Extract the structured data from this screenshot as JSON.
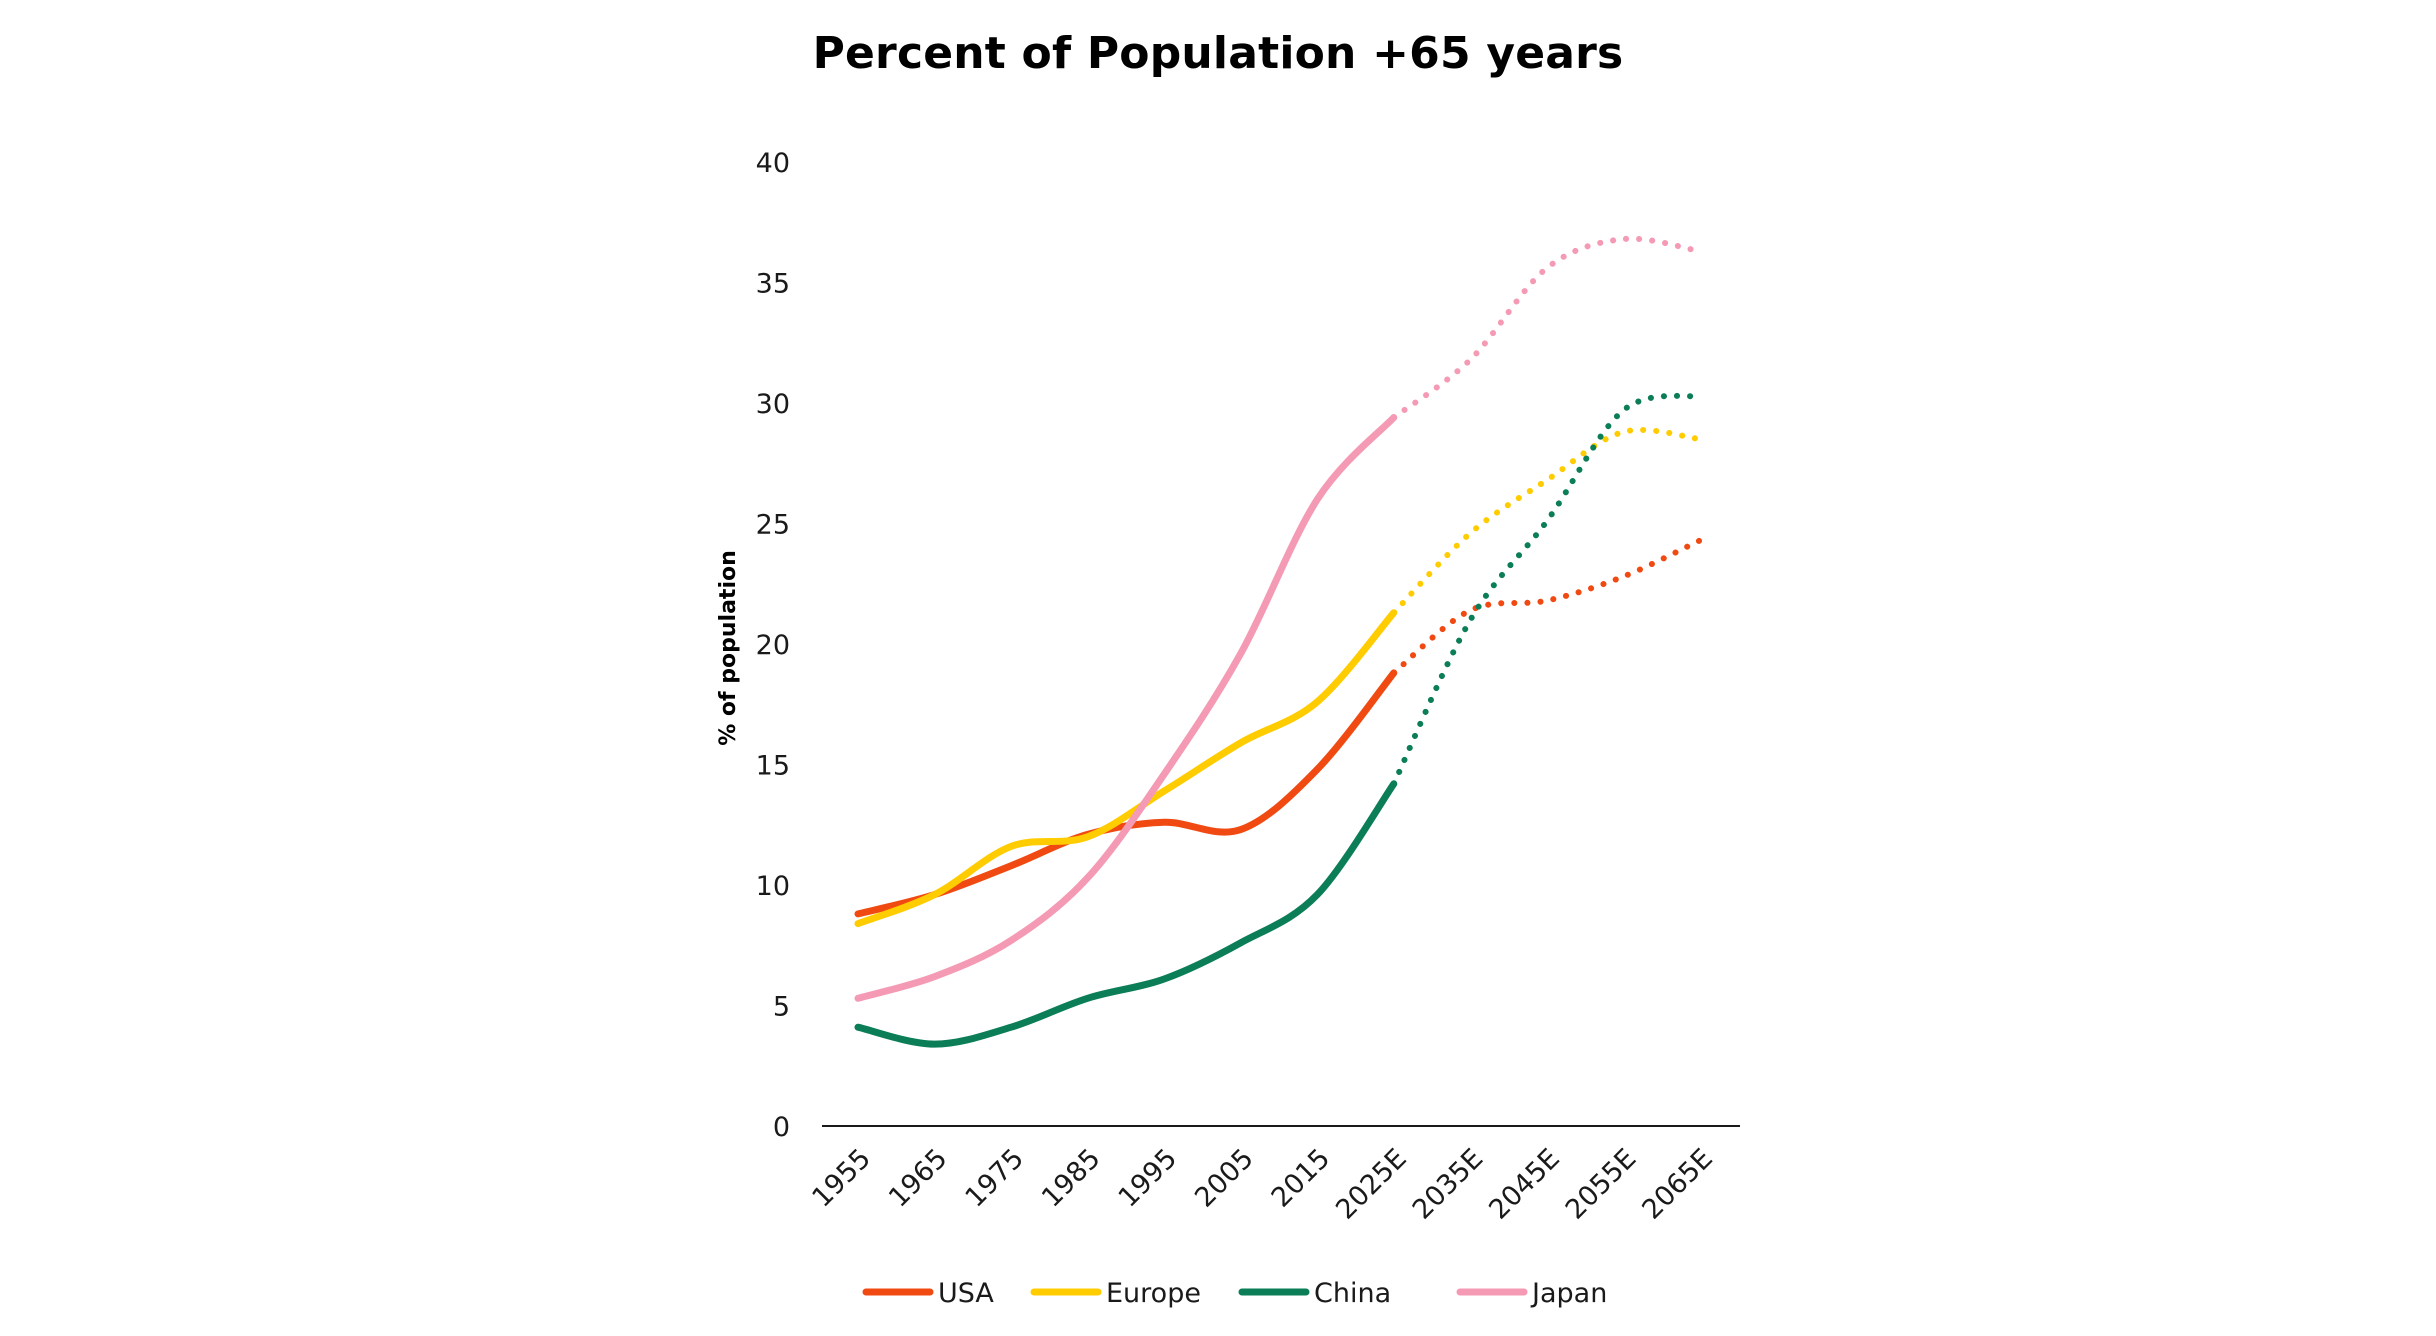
{
  "chart_data": {
    "type": "line",
    "title": "Percent of Population +65 years",
    "xlabel": "",
    "ylabel": "% of population",
    "categories": [
      "1955",
      "1965",
      "1975",
      "1985",
      "1995",
      "2005",
      "2015",
      "2025E",
      "2035E",
      "2045E",
      "2055E",
      "2065E"
    ],
    "estimate_start_index": 7,
    "ylim": [
      0,
      40
    ],
    "yticks": [
      0,
      5,
      10,
      15,
      20,
      25,
      30,
      35,
      40
    ],
    "grid": false,
    "legend_position": "bottom",
    "line_style": {
      "historical": "solid",
      "projected": "dotted"
    },
    "series": [
      {
        "name": "USA",
        "color": "#f04a12",
        "values": [
          8.8,
          9.6,
          10.8,
          12.1,
          12.6,
          12.3,
          14.8,
          18.8,
          21.4,
          21.8,
          22.8,
          24.3
        ]
      },
      {
        "name": "Europe",
        "color": "#ffcc00",
        "values": [
          8.4,
          9.6,
          11.6,
          12.0,
          13.9,
          15.9,
          17.6,
          21.3,
          24.6,
          26.8,
          28.8,
          28.5
        ]
      },
      {
        "name": "China",
        "color": "#0b7d57",
        "values": [
          4.1,
          3.4,
          4.1,
          5.3,
          6.1,
          7.6,
          9.6,
          14.2,
          21.0,
          25.1,
          29.7,
          30.3
        ]
      },
      {
        "name": "Japan",
        "color": "#f59ab5",
        "values": [
          5.3,
          6.2,
          7.7,
          10.3,
          14.6,
          19.6,
          26.0,
          29.4,
          31.8,
          35.6,
          36.8,
          36.3
        ]
      }
    ]
  }
}
